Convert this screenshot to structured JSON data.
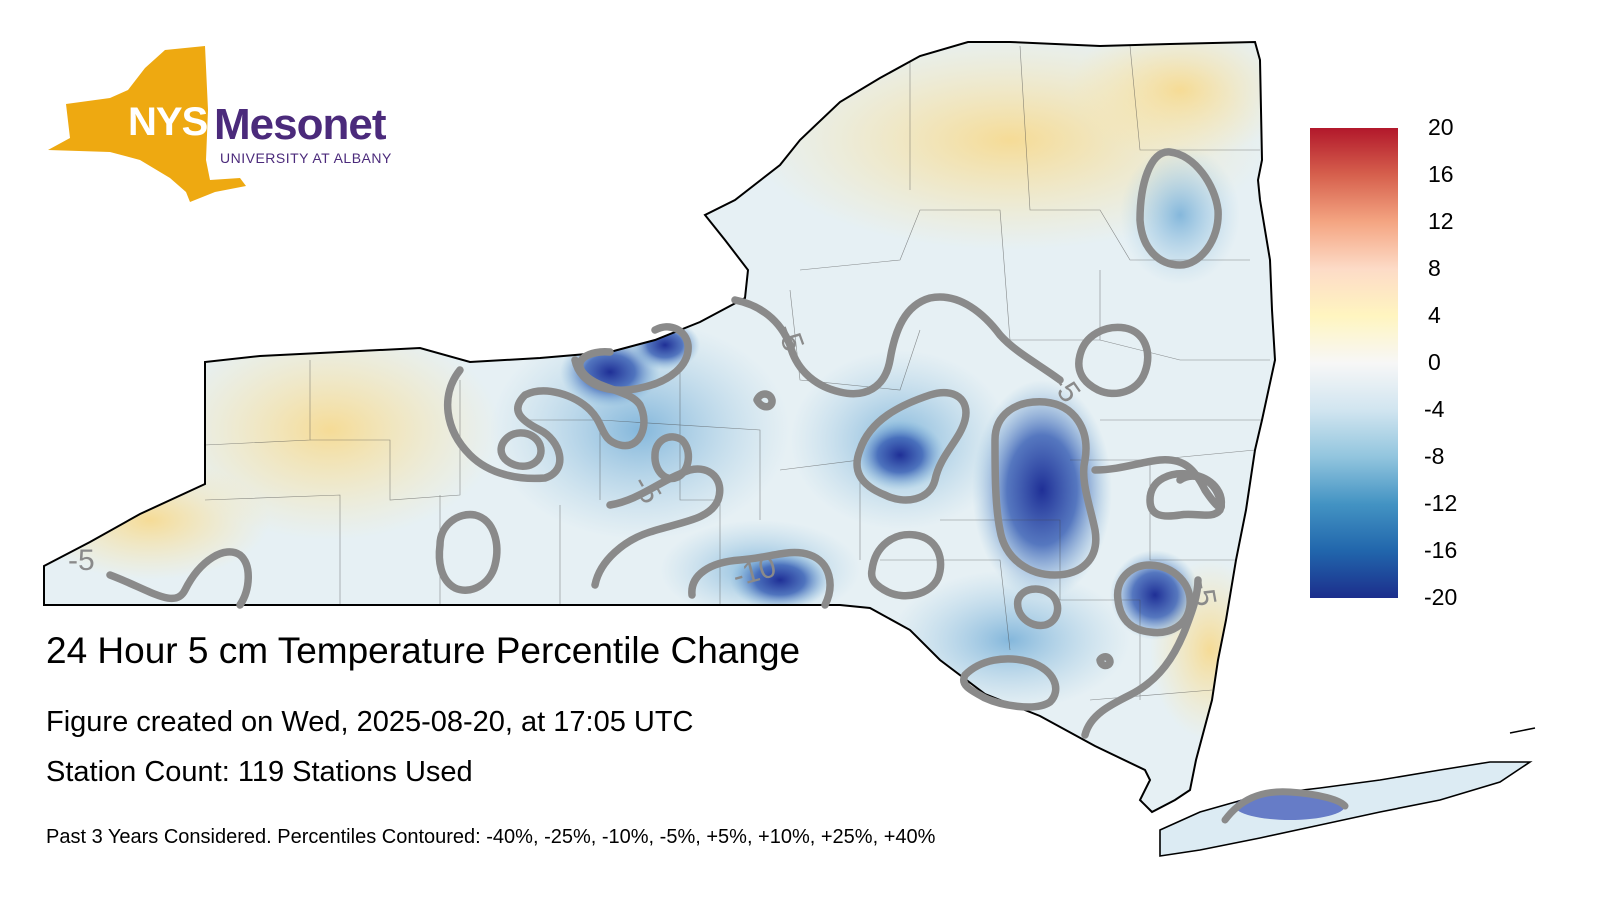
{
  "logo": {
    "nys": "NYS",
    "mesonet": "Mesonet",
    "university": "UNIVERSITY AT ALBANY"
  },
  "title": "24 Hour 5 cm Temperature Percentile Change",
  "created": "Figure created on Wed, 2025-08-20, at 17:05 UTC",
  "station_count": "Station Count: 119 Stations Used",
  "footnote": "Past 3 Years Considered. Percentiles Contoured: -40%, -25%, -10%, -5%, +5%, +10%, +25%, +40%",
  "colorbar": {
    "labels": [
      "20",
      "16",
      "12",
      "8",
      "4",
      "0",
      "-4",
      "-8",
      "-12",
      "-16",
      "-20"
    ],
    "colors": [
      "#b2182b",
      "#d6604d",
      "#f4a582",
      "#fddbc7",
      "#fff5c0",
      "#f7f7f7",
      "#d1e5f0",
      "#92c5de",
      "#4393c3",
      "#2166ac",
      "#1c2e8c"
    ]
  },
  "contour_labels": [
    "-5",
    "-5",
    "-5",
    "-5",
    "-10",
    "-5"
  ],
  "colors": {
    "land_base": "#e3eff5",
    "warm": "#fbe6a8",
    "cool": "#9cc8e2",
    "cold": "#2a3fa8",
    "contour": "#8a8a8a",
    "logo_gold": "#eea911",
    "logo_purple": "#4b2a7b"
  }
}
